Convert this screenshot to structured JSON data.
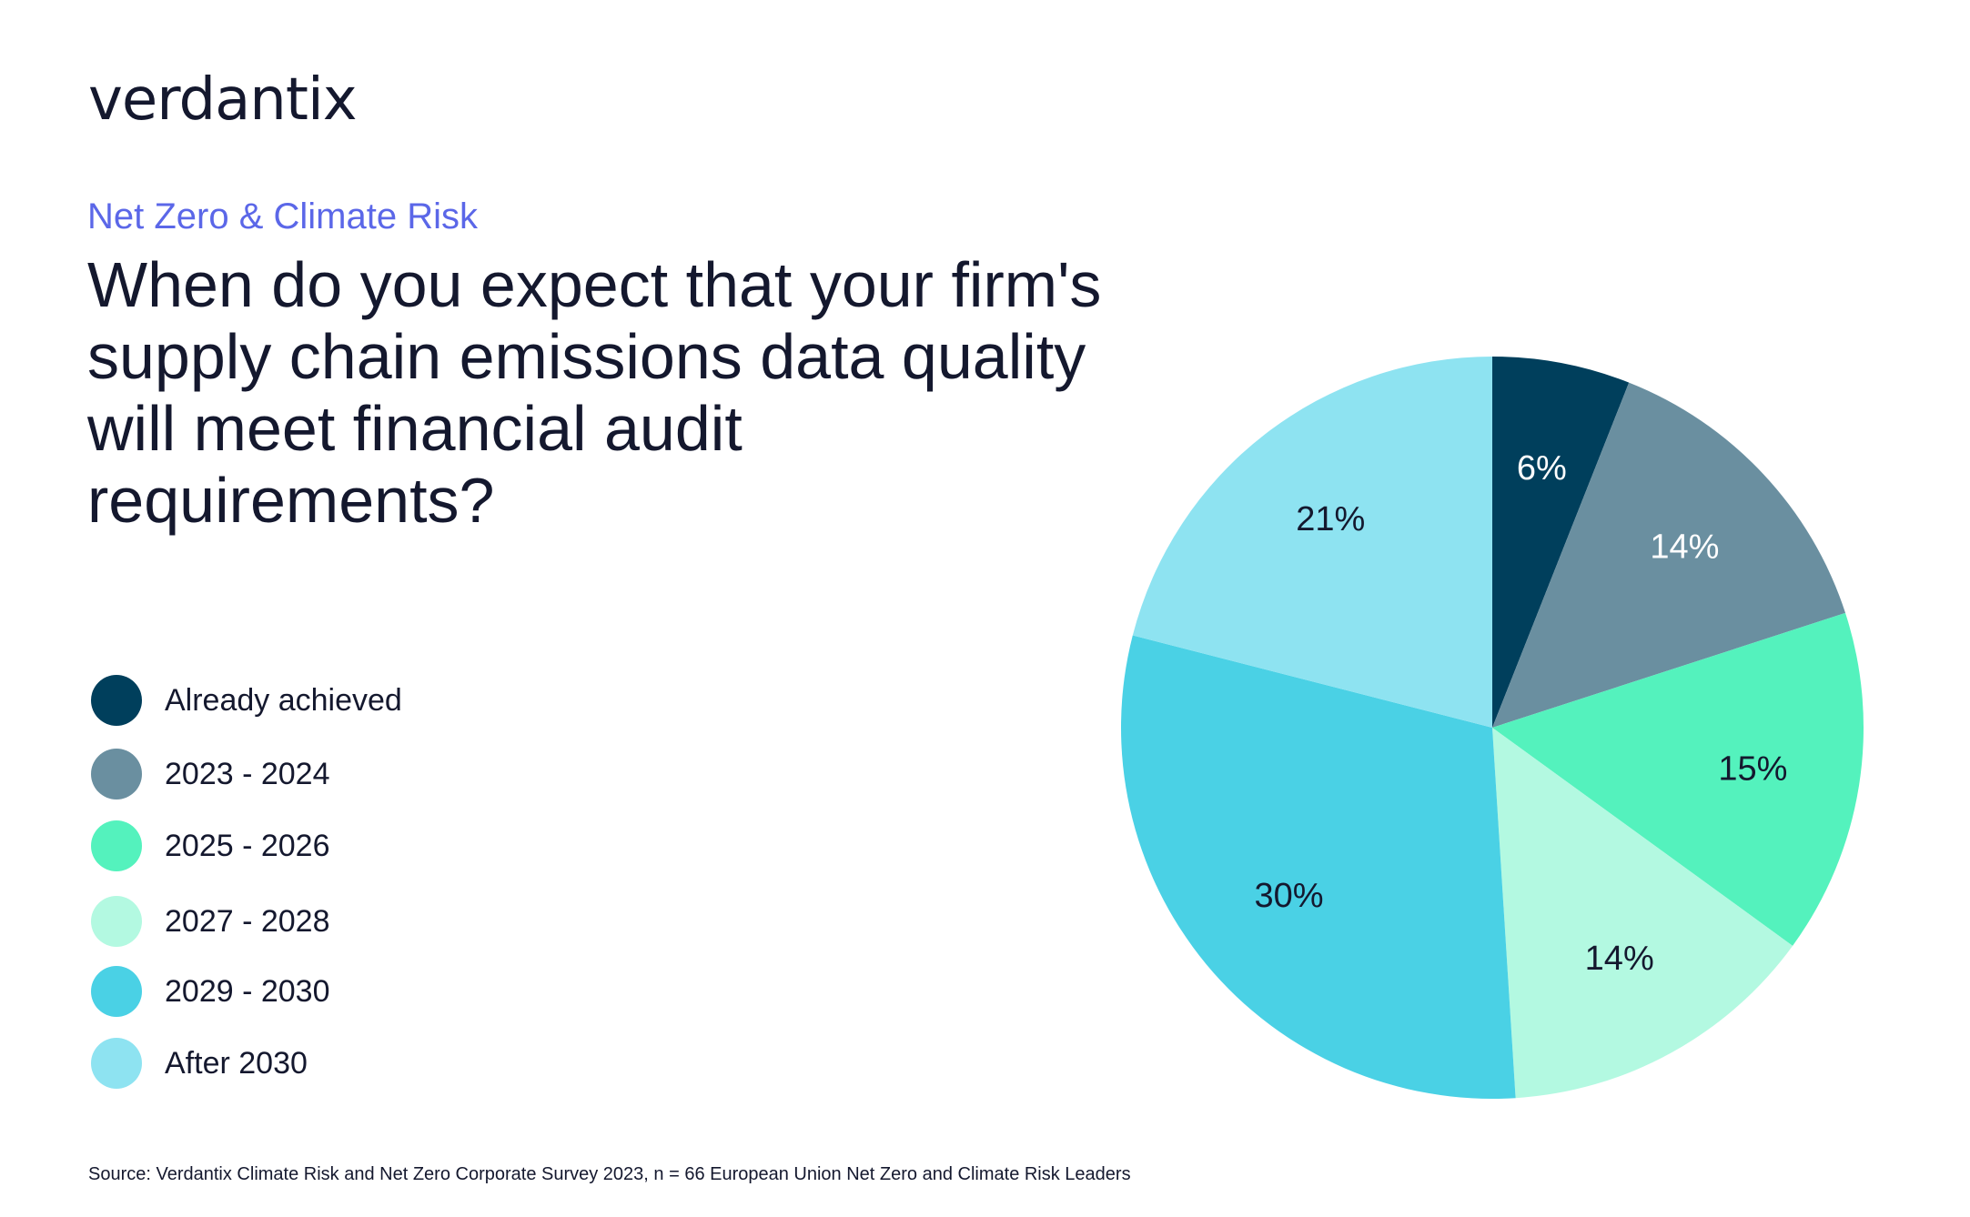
{
  "brand": {
    "logo_text": "verdantix"
  },
  "header": {
    "category": "Net Zero & Climate Risk",
    "question": "When do you expect that your firm's supply chain emissions data quality will meet financial audit requirements?"
  },
  "chart_data": {
    "type": "pie",
    "title": "When do you expect that your firm's supply chain emissions data quality will meet financial audit requirements?",
    "categories": [
      "Already achieved",
      "2023 - 2024",
      "2025 - 2026",
      "2027 - 2028",
      "2029 - 2030",
      "After 2030"
    ],
    "values": [
      6,
      14,
      15,
      14,
      30,
      21
    ],
    "labels": [
      "6%",
      "14%",
      "15%",
      "14%",
      "30%",
      "21%"
    ],
    "colors": [
      "#003f5c",
      "#6a8fa0",
      "#54f2bd",
      "#b3f9e1",
      "#4ad1e5",
      "#8ee3f1"
    ],
    "label_colors": [
      "#ffffff",
      "#ffffff",
      "#14182e",
      "#14182e",
      "#14182e",
      "#14182e"
    ],
    "legend_position": "left",
    "start_angle_deg": 0,
    "direction": "clockwise"
  },
  "legend": {
    "items": [
      {
        "label": "Already achieved",
        "color": "#003f5c"
      },
      {
        "label": "2023 - 2024",
        "color": "#6a8fa0"
      },
      {
        "label": "2025 - 2026",
        "color": "#54f2bd"
      },
      {
        "label": "2027 - 2028",
        "color": "#b3f9e1"
      },
      {
        "label": "2029 - 2030",
        "color": "#4ad1e5"
      },
      {
        "label": "After 2030",
        "color": "#8ee3f1"
      }
    ]
  },
  "footer": {
    "source": "Source: Verdantix Climate Risk and Net Zero Corporate Survey 2023, n = 66 European Union Net Zero and Climate Risk Leaders"
  }
}
